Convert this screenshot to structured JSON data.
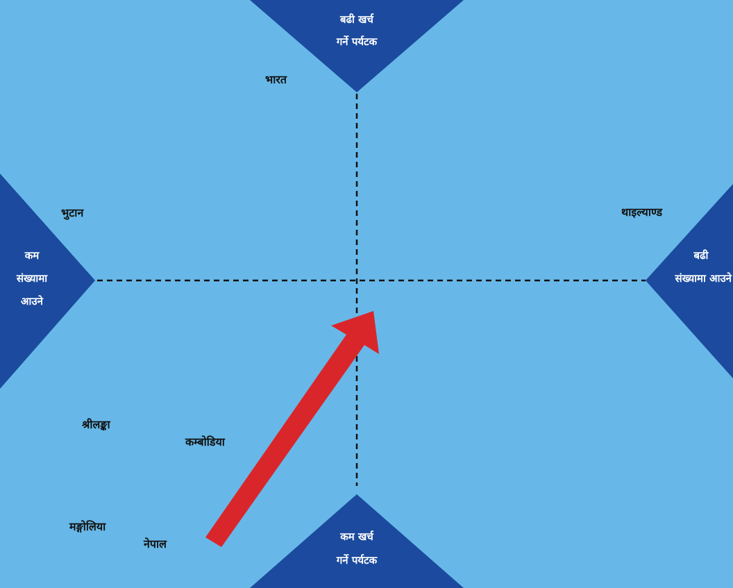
{
  "colors": {
    "background": "#67b8e8",
    "triangle": "#1b4a9e",
    "triangle_text": "#ffffff",
    "label_text": "#111111",
    "arrow": "#d9262b",
    "dashed_line": "#111111"
  },
  "axes": {
    "top": [
      "बढी खर्च",
      "गर्ने पर्यटक"
    ],
    "bottom": [
      "कम खर्च",
      "गर्ने पर्यटक"
    ],
    "left": [
      "कम",
      "संख्यामा",
      "आउने"
    ],
    "right": [
      "बढी",
      "संख्यामा आउने"
    ]
  },
  "countries": {
    "india": "भारत",
    "bhutan": "भुटान",
    "thailand": "थाइल्याण्ड",
    "sri_lanka": "श्रीलङ्का",
    "cambodia": "कम्बोडिया",
    "mongolia": "मङ्गोलिया",
    "nepal": "नेपाल"
  },
  "arrow_direction": "up-right"
}
